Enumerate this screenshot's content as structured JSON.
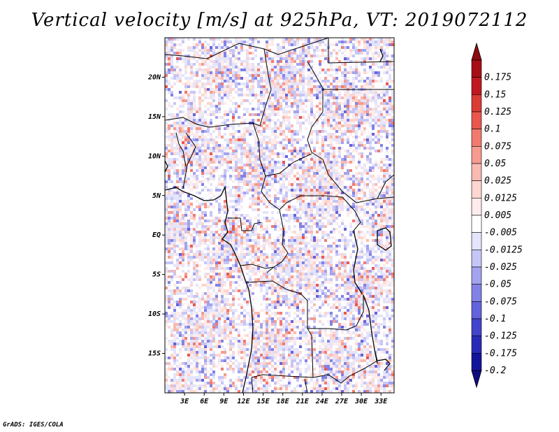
{
  "title": "Vertical velocity [m/s] at 925hPa, VT: 2019072112",
  "credit": "GrADS: IGES/COLA",
  "map": {
    "lon_range": [
      0,
      35
    ],
    "lat_range": [
      -20,
      25
    ],
    "lat_ticks": [
      {
        "value": 20,
        "label": "20N"
      },
      {
        "value": 15,
        "label": "15N"
      },
      {
        "value": 10,
        "label": "10N"
      },
      {
        "value": 5,
        "label": "5N"
      },
      {
        "value": 0,
        "label": "EQ"
      },
      {
        "value": -5,
        "label": "5S"
      },
      {
        "value": -10,
        "label": "10S"
      },
      {
        "value": -15,
        "label": "15S"
      }
    ],
    "lon_ticks": [
      {
        "value": 3,
        "label": "3E"
      },
      {
        "value": 6,
        "label": "6E"
      },
      {
        "value": 9,
        "label": "9E"
      },
      {
        "value": 12,
        "label": "12E"
      },
      {
        "value": 15,
        "label": "15E"
      },
      {
        "value": 18,
        "label": "18E"
      },
      {
        "value": 21,
        "label": "21E"
      },
      {
        "value": 24,
        "label": "24E"
      },
      {
        "value": 27,
        "label": "27E"
      },
      {
        "value": 30,
        "label": "30E"
      },
      {
        "value": 33,
        "label": "33E"
      }
    ]
  },
  "colorbar": {
    "levels": [
      {
        "label": "0.175",
        "color": "#a50f15"
      },
      {
        "label": "0.15",
        "color": "#c0181f"
      },
      {
        "label": "0.125",
        "color": "#d93b35"
      },
      {
        "label": "0.1",
        "color": "#e9574e"
      },
      {
        "label": "0.075",
        "color": "#f07a6e"
      },
      {
        "label": "0.05",
        "color": "#f59b8f"
      },
      {
        "label": "0.025",
        "color": "#f9bab1"
      },
      {
        "label": "0.0125",
        "color": "#fcd6d0"
      },
      {
        "label": "0.005",
        "color": "#fdeceb"
      },
      {
        "label": "-0.005",
        "color": "#ffffff"
      },
      {
        "label": "-0.0125",
        "color": "#e4e4fb"
      },
      {
        "label": "-0.025",
        "color": "#c6c6f6"
      },
      {
        "label": "-0.05",
        "color": "#a3a3ef"
      },
      {
        "label": "-0.075",
        "color": "#8282e6"
      },
      {
        "label": "-0.1",
        "color": "#6363db"
      },
      {
        "label": "-0.125",
        "color": "#4343cc"
      },
      {
        "label": "-0.175",
        "color": "#2a2ab8"
      },
      {
        "label": "-0.2",
        "color": "#14149a"
      }
    ],
    "top_color": "#8c0a10",
    "bottom_color": "#0d0d80"
  }
}
